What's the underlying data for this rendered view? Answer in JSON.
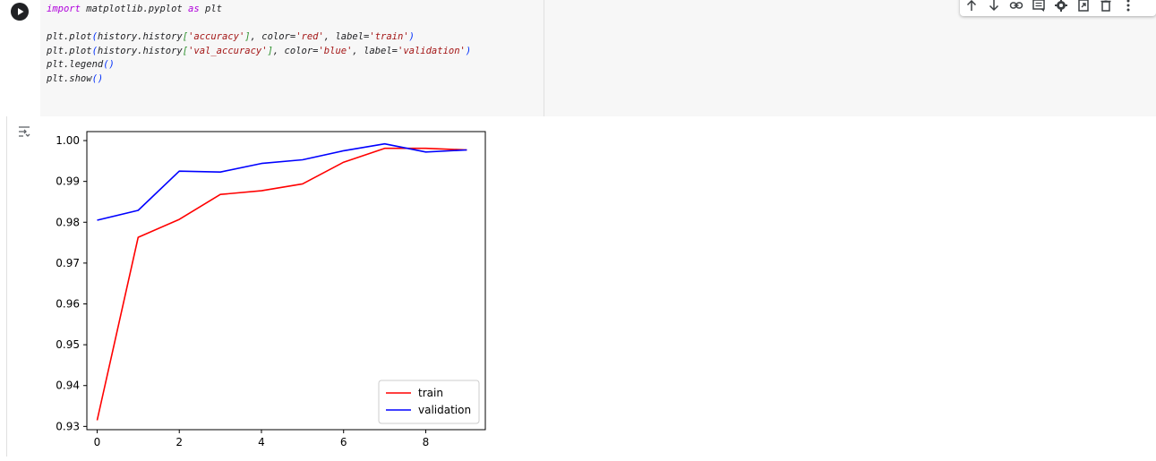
{
  "code": {
    "lines": [
      [
        {
          "t": "import",
          "c": "kw"
        },
        {
          "t": " matplotlib.pyplot ",
          "c": ""
        },
        {
          "t": "as",
          "c": "kw"
        },
        {
          "t": " plt",
          "c": ""
        }
      ],
      [],
      [
        {
          "t": "plt.plot",
          "c": ""
        },
        {
          "t": "(",
          "c": "paren"
        },
        {
          "t": "history.history",
          "c": ""
        },
        {
          "t": "[",
          "c": "bracket"
        },
        {
          "t": "'accuracy'",
          "c": "str"
        },
        {
          "t": "]",
          "c": "bracket"
        },
        {
          "t": ", color=",
          "c": ""
        },
        {
          "t": "'red'",
          "c": "str"
        },
        {
          "t": ", label=",
          "c": ""
        },
        {
          "t": "'train'",
          "c": "str"
        },
        {
          "t": ")",
          "c": "paren"
        }
      ],
      [
        {
          "t": "plt.plot",
          "c": ""
        },
        {
          "t": "(",
          "c": "paren"
        },
        {
          "t": "history.history",
          "c": ""
        },
        {
          "t": "[",
          "c": "bracket"
        },
        {
          "t": "'val_accuracy'",
          "c": "str"
        },
        {
          "t": "]",
          "c": "bracket"
        },
        {
          "t": ", color=",
          "c": ""
        },
        {
          "t": "'blue'",
          "c": "str"
        },
        {
          "t": ", label=",
          "c": ""
        },
        {
          "t": "'validation'",
          "c": "str"
        },
        {
          "t": ")",
          "c": "paren"
        }
      ],
      [
        {
          "t": "plt.legend",
          "c": ""
        },
        {
          "t": "()",
          "c": "paren"
        }
      ],
      [
        {
          "t": "plt.show",
          "c": ""
        },
        {
          "t": "()",
          "c": "paren"
        }
      ]
    ]
  },
  "toolbar": {
    "icons": [
      "move-up-icon",
      "move-down-icon",
      "link-icon",
      "comment-icon",
      "settings-icon",
      "mirror-cell-icon",
      "delete-icon",
      "more-icon"
    ]
  },
  "colors": {
    "code_bg": "#f7f7f7",
    "train": "#ff0000",
    "validation": "#0000ff"
  },
  "chart_data": {
    "type": "line",
    "x": [
      0,
      1,
      2,
      3,
      4,
      5,
      6,
      7,
      8,
      9
    ],
    "series": [
      {
        "name": "train",
        "color": "#ff0000",
        "values": [
          0.9315,
          0.9763,
          0.9807,
          0.9868,
          0.9877,
          0.9894,
          0.9947,
          0.9981,
          0.9981,
          0.9977
        ]
      },
      {
        "name": "validation",
        "color": "#0000ff",
        "values": [
          0.9805,
          0.9829,
          0.9925,
          0.9923,
          0.9944,
          0.9953,
          0.9975,
          0.9992,
          0.9972,
          0.9977
        ]
      }
    ],
    "xticks": [
      "0",
      "2",
      "4",
      "6",
      "8"
    ],
    "yticks": [
      "0.93",
      "0.94",
      "0.95",
      "0.96",
      "0.97",
      "0.98",
      "0.99",
      "1.00"
    ],
    "xlim": [
      -0.25,
      9.45
    ],
    "ylim": [
      0.9292,
      1.0022
    ],
    "legend": "lower-right",
    "title": "",
    "xlabel": "",
    "ylabel": ""
  }
}
